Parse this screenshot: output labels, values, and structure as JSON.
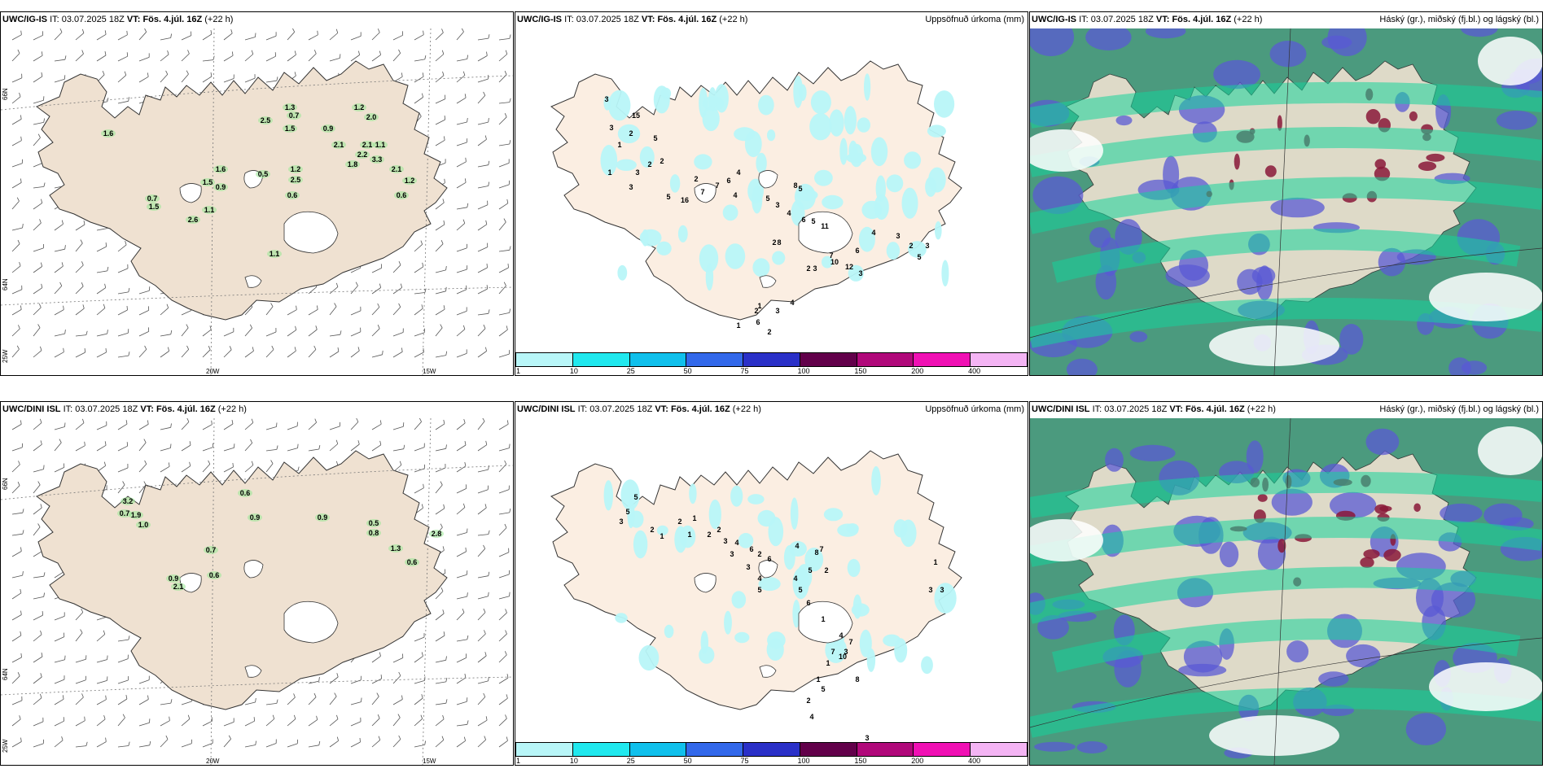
{
  "rows": [
    {
      "model": "UWC/IG-IS",
      "it_label": "IT:",
      "it_value": "03.07.2025 18Z",
      "vt_label": "VT:",
      "vt_value": "Fös. 4.júl. 16Z",
      "lead": "(+22 h)",
      "wind_values": [
        "1.6",
        "2.5",
        "1.3",
        "0.7",
        "1.2",
        "2.0",
        "1.5",
        "0.9",
        "2.1",
        "2.1",
        "1.1",
        "2.2",
        "1.8",
        "3.3",
        "1.6",
        "0.5",
        "1.2",
        "2.5",
        "2.1",
        "1.2",
        "1.5",
        "0.9",
        "0.6",
        "0.7",
        "1.5",
        "1.1",
        "2.6",
        "1.1",
        "0.6"
      ],
      "precip_values": [
        "3",
        "15",
        "3",
        "2",
        "1",
        "5",
        "2",
        "2",
        "3",
        "1",
        "3",
        "5",
        "16",
        "2",
        "7",
        "7",
        "6",
        "4",
        "4",
        "5",
        "3",
        "8",
        "5",
        "4",
        "6",
        "5",
        "2",
        "8",
        "3",
        "7",
        "10",
        "6",
        "12",
        "11",
        "4",
        "3",
        "3",
        "2",
        "4",
        "2",
        "6",
        "2",
        "5",
        "3",
        "2",
        "1",
        "1",
        "3"
      ],
      "cloud_note": "Háský (gr.), miðský (fj.bl.) og lágský (bl.)"
    },
    {
      "model": "UWC/DINI ISL",
      "it_label": "IT:",
      "it_value": "03.07.2025 18Z",
      "vt_label": "VT:",
      "vt_value": "Fös. 4.júl. 16Z",
      "lead": "(+22 h)",
      "wind_values": [
        "3.2",
        "0.7",
        "1.9",
        "1.0",
        "0.6",
        "0.9",
        "0.9",
        "0.5",
        "0.8",
        "2.8",
        "0.7",
        "1.3",
        "0.6",
        "0.9",
        "2.1",
        "0.6"
      ],
      "precip_values": [
        "5",
        "5",
        "3",
        "2",
        "1",
        "2",
        "1",
        "1",
        "2",
        "2",
        "3",
        "4",
        "3",
        "6",
        "2",
        "3",
        "4",
        "5",
        "6",
        "4",
        "5",
        "2",
        "7",
        "8",
        "4",
        "5",
        "6",
        "1",
        "4",
        "7",
        "3",
        "1",
        "1",
        "5",
        "7",
        "10",
        "8",
        "2",
        "4",
        "3",
        "3",
        "3",
        "1"
      ],
      "cloud_note": "Háský (gr.), miðský (fj.bl.) og lágský (bl.)"
    }
  ],
  "precip_title": "Uppsöfnuð úrkoma (mm)",
  "colorbar": {
    "labels": [
      "1",
      "10",
      "25",
      "50",
      "75",
      "100",
      "150",
      "200",
      "400"
    ],
    "colors": [
      "#b8f6f8",
      "#20e8ee",
      "#10c0ec",
      "#3268ea",
      "#2a30c8",
      "#62004a",
      "#b0087a",
      "#f010b4",
      "#f4b4f4"
    ]
  },
  "axes": {
    "lat_66": "66N",
    "lat_64": "64N",
    "lon_25": "25W",
    "lon_20": "20W",
    "lon_15": "15W"
  },
  "colors": {
    "land": "#efe1d1",
    "sea": "#ffffff",
    "precip_land": "#fbeee2",
    "cloud_high": "#16d49a",
    "cloud_mid": "#5a5ad4",
    "cloud_low": "#2a8a6e",
    "cloud_base": "#4b9a7e"
  }
}
